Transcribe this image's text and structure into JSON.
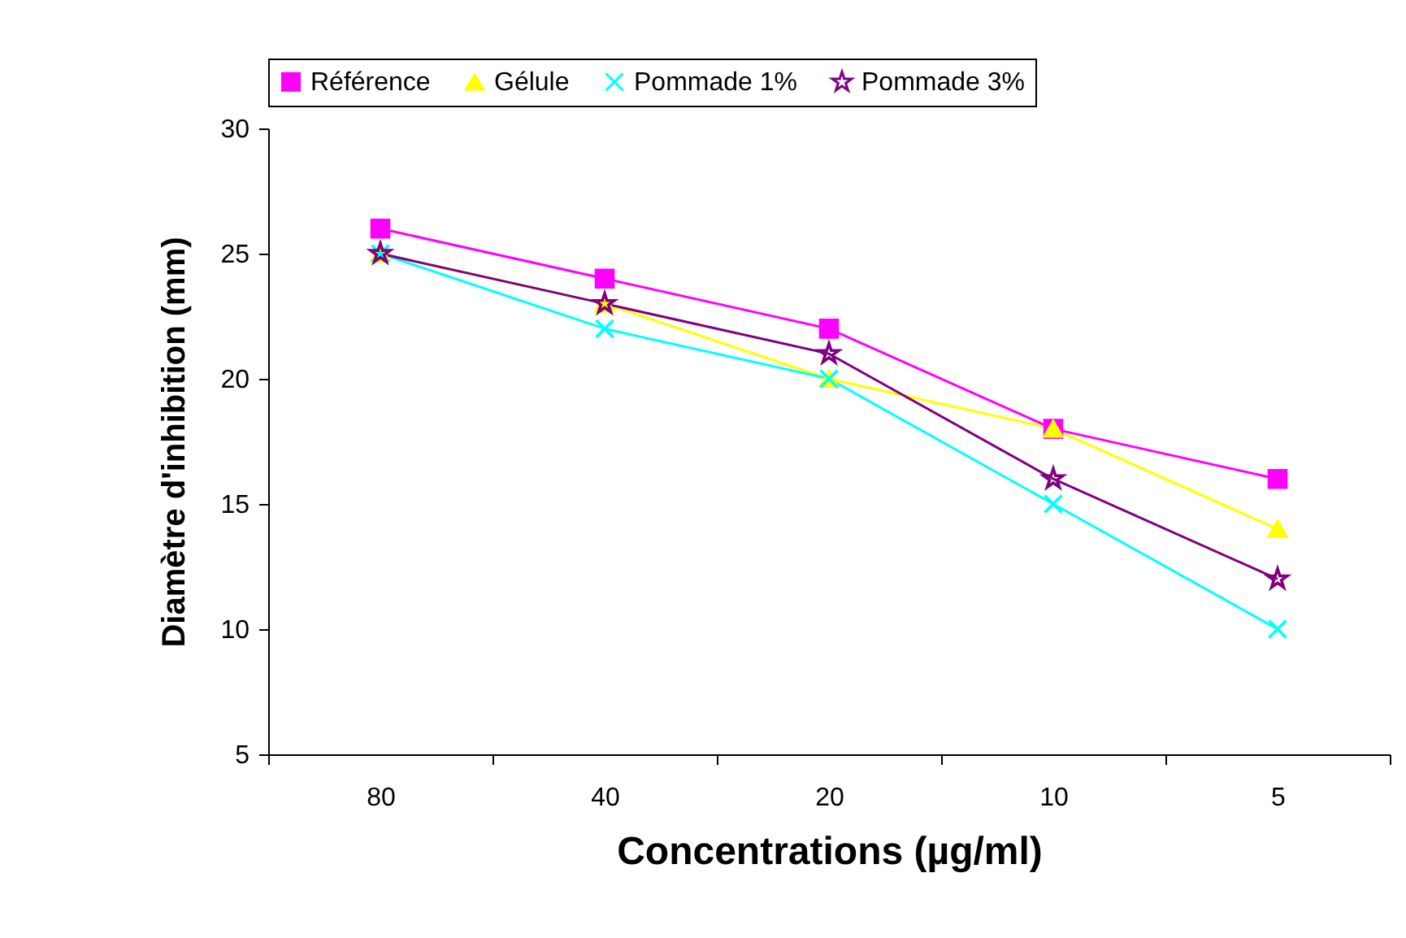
{
  "chart_data": {
    "type": "line",
    "xlabel": "Concentrations (µg/ml)",
    "ylabel": "Diamètre d'inhibition (mm)",
    "categories": [
      "80",
      "40",
      "20",
      "10",
      "5"
    ],
    "series": [
      {
        "name": "Référence",
        "color": "#ff00ff",
        "marker": "square",
        "values": [
          26,
          24,
          22,
          18,
          16
        ]
      },
      {
        "name": "Gélule",
        "color": "#ffff00",
        "marker": "triangle",
        "values": [
          25,
          23,
          20,
          18,
          14
        ]
      },
      {
        "name": "Pommade 1%",
        "color": "#00ffff",
        "marker": "cross",
        "values": [
          25,
          22,
          20,
          15,
          10
        ]
      },
      {
        "name": "Pommade 3%",
        "color": "#800080",
        "marker": "star",
        "values": [
          25,
          23,
          21,
          16,
          12
        ]
      }
    ],
    "ylim": [
      5,
      30
    ],
    "yticks": [
      5,
      10,
      15,
      20,
      25,
      30
    ],
    "grid": false,
    "legend": "top"
  }
}
